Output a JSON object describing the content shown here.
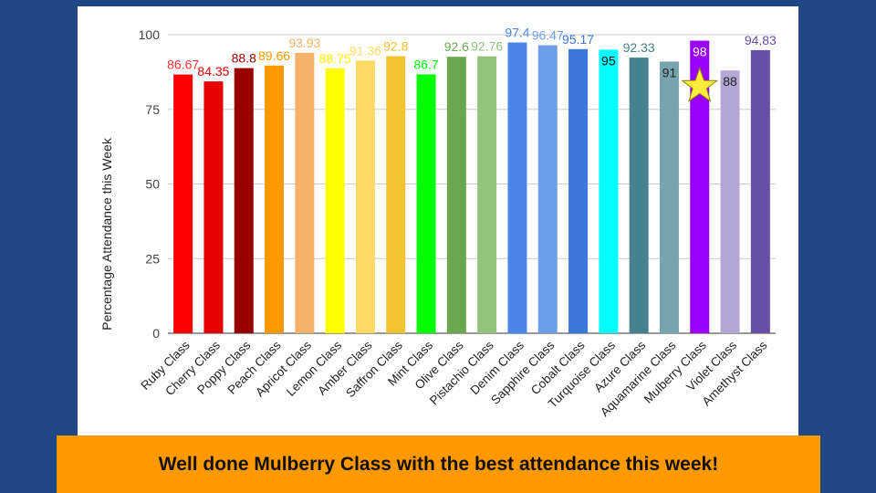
{
  "banner": {
    "text": "Well done Mulberry Class with the best attendance this week!"
  },
  "chart_data": {
    "type": "bar",
    "title": "",
    "xlabel": "",
    "ylabel": "Percentage Attendance this Week",
    "ylim": [
      0,
      100
    ],
    "yticks": [
      0,
      25,
      50,
      75,
      100
    ],
    "grid": true,
    "categories": [
      "Ruby Class",
      "Cherry Class",
      "Poppy Class",
      "Peach Class",
      "Apricot Class",
      "Lemon Class",
      "Amber Class",
      "Saffron Class",
      "Mint Class",
      "Olive Class",
      "Pistachio Class",
      "Denim Class",
      "Sapphire Class",
      "Cobalt Class",
      "Turquoise Class",
      "Azure Class",
      "Aquamarine Class",
      "Mulberry Class",
      "Violet Class",
      "Amethyst Class"
    ],
    "values": [
      86.67,
      84.35,
      88.8,
      89.66,
      93.93,
      88.75,
      91.36,
      92.8,
      86.7,
      92.6,
      92.76,
      97.4,
      96.47,
      95.17,
      95,
      92.33,
      91,
      98,
      88,
      94.83
    ],
    "value_labels": [
      "86.67",
      "84.35",
      "88.8",
      "89.66",
      "93.93",
      "88.75",
      "91.36",
      "92.8",
      "86.7",
      "92.6",
      "92.76",
      "97.4",
      "96.47",
      "95.17",
      "95",
      "92.33",
      "91",
      "98",
      "88",
      "94.83"
    ],
    "colors": [
      "#ff0000",
      "#e60000",
      "#990000",
      "#ff9900",
      "#f6b26b",
      "#ffff00",
      "#ffd966",
      "#f1c232",
      "#00ff00",
      "#6aa84f",
      "#93c47d",
      "#4a86e8",
      "#6d9eeb",
      "#3c78d8",
      "#00ffff",
      "#45818e",
      "#76a5af",
      "#9900ff",
      "#b4a7d6",
      "#674ea7"
    ],
    "label_colors": [
      "#ff3333",
      "#e60000",
      "#990000",
      "#ff9900",
      "#f6b26b",
      "#ffff00",
      "#ffd966",
      "#f1c232",
      "#00ff00",
      "#6aa84f",
      "#93c47d",
      "#4a86e8",
      "#6d9eeb",
      "#3c78d8",
      "#111111",
      "#45818e",
      "#222222",
      "#ffffff",
      "#222222",
      "#674ea7"
    ],
    "highlight": {
      "category": "Mulberry Class",
      "marker": "star-icon",
      "color": "#ffeb3b"
    }
  }
}
